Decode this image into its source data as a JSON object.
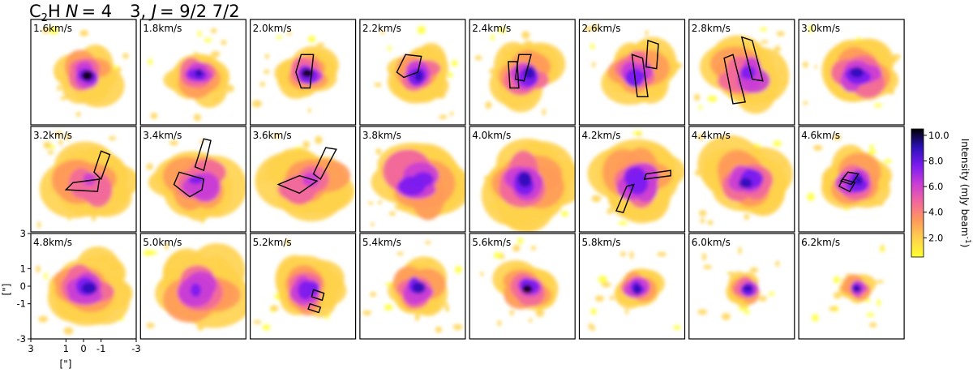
{
  "chart_data": {
    "type": "heatmap",
    "title_parts": {
      "molecule": "C",
      "molecule_sub": "2",
      "molecule_tail": "H",
      "n_label": "N",
      "n_value": "= 4",
      "transition": "3, ",
      "j_label": "J",
      "j_value": "= 9/2   7/2"
    },
    "panels": [
      {
        "label": "1.6km/s",
        "v": 1.6,
        "peak": 10.2,
        "spread": 1.0,
        "regions": []
      },
      {
        "label": "1.8km/s",
        "v": 1.8,
        "peak": 9.5,
        "spread": 1.0,
        "regions": []
      },
      {
        "label": "2.0km/s",
        "v": 2.0,
        "peak": 10.0,
        "spread": 0.9,
        "regions": [
          [
            [
              -0.6,
              1.0
            ],
            [
              0.1,
              1.0
            ],
            [
              0.4,
              0.0
            ],
            [
              0.1,
              -0.9
            ],
            [
              -0.4,
              -0.9
            ]
          ]
        ]
      },
      {
        "label": "2.2km/s",
        "v": 2.2,
        "peak": 9.0,
        "spread": 1.0,
        "regions": [
          [
            [
              -0.5,
              0.9
            ],
            [
              0.4,
              1.0
            ],
            [
              0.9,
              0.0
            ],
            [
              0.5,
              -0.3
            ],
            [
              -0.3,
              0.0
            ]
          ]
        ]
      },
      {
        "label": "2.4km/s",
        "v": 2.4,
        "peak": 8.5,
        "spread": 1.1,
        "regions": [
          [
            [
              -0.5,
              1.0
            ],
            [
              0.2,
              1.0
            ],
            [
              0.4,
              -0.4
            ],
            [
              -0.1,
              -0.5
            ]
          ],
          [
            [
              0.3,
              0.6
            ],
            [
              0.8,
              0.6
            ],
            [
              0.7,
              -0.9
            ],
            [
              0.2,
              -0.9
            ]
          ]
        ]
      },
      {
        "label": "2.6km/s",
        "v": 2.6,
        "peak": 8.0,
        "spread": 1.2,
        "regions": [
          [
            [
              -1.5,
              1.6
            ],
            [
              -0.9,
              1.8
            ],
            [
              -0.8,
              0.3
            ],
            [
              -1.4,
              0.2
            ]
          ],
          [
            [
              -0.6,
              0.8
            ],
            [
              0.0,
              1.0
            ],
            [
              -0.3,
              -1.4
            ],
            [
              -0.9,
              -1.4
            ]
          ]
        ]
      },
      {
        "label": "2.8km/s",
        "v": 2.8,
        "peak": 7.5,
        "spread": 1.3,
        "regions": [
          [
            [
              -0.6,
              1.8
            ],
            [
              0.0,
              2.0
            ],
            [
              -0.6,
              -0.4
            ],
            [
              -1.2,
              -0.5
            ]
          ],
          [
            [
              0.5,
              1.0
            ],
            [
              1.0,
              0.8
            ],
            [
              0.5,
              -1.8
            ],
            [
              -0.2,
              -1.7
            ]
          ]
        ]
      },
      {
        "label": "3.0km/s",
        "v": 3.0,
        "peak": 8.5,
        "spread": 1.4,
        "regions": []
      },
      {
        "label": "3.2km/s",
        "v": 3.2,
        "peak": 6.5,
        "spread": 1.4,
        "regions": [
          [
            [
              -1.5,
              1.4
            ],
            [
              -1.0,
              1.6
            ],
            [
              -0.6,
              0.4
            ],
            [
              -1.0,
              0.0
            ]
          ],
          [
            [
              -0.9,
              0.0
            ],
            [
              0.6,
              -0.2
            ],
            [
              1.0,
              -0.6
            ],
            [
              -0.8,
              -0.7
            ]
          ]
        ]
      },
      {
        "label": "3.4km/s",
        "v": 3.4,
        "peak": 7.0,
        "spread": 1.4,
        "regions": [
          [
            [
              -1.0,
              2.2
            ],
            [
              -0.6,
              2.3
            ],
            [
              -0.1,
              0.7
            ],
            [
              -0.6,
              0.5
            ]
          ],
          [
            [
              -0.6,
              0.0
            ],
            [
              0.8,
              0.4
            ],
            [
              1.1,
              -0.3
            ],
            [
              0.2,
              -1.0
            ],
            [
              -0.5,
              -0.6
            ]
          ]
        ]
      },
      {
        "label": "3.6km/s",
        "v": 3.6,
        "peak": 6.5,
        "spread": 1.5,
        "regions": [
          [
            [
              -1.9,
              1.7
            ],
            [
              -1.3,
              1.8
            ],
            [
              -0.6,
              0.3
            ],
            [
              -1.0,
              0.0
            ]
          ],
          [
            [
              -0.8,
              -0.1
            ],
            [
              0.2,
              0.2
            ],
            [
              1.4,
              -0.3
            ],
            [
              0.2,
              -0.8
            ]
          ]
        ]
      },
      {
        "label": "3.8km/s",
        "v": 3.8,
        "peak": 8.0,
        "spread": 1.6,
        "regions": []
      },
      {
        "label": "4.0km/s",
        "v": 4.0,
        "peak": 8.5,
        "spread": 1.6,
        "regions": []
      },
      {
        "label": "4.2km/s",
        "v": 4.2,
        "peak": 8.0,
        "spread": 1.5,
        "regions": [
          [
            [
              -2.2,
              0.5
            ],
            [
              -0.8,
              0.3
            ],
            [
              -0.7,
              0.0
            ],
            [
              -2.2,
              0.2
            ]
          ],
          [
            [
              -0.1,
              -0.3
            ],
            [
              0.3,
              -0.4
            ],
            [
              0.9,
              -1.8
            ],
            [
              0.5,
              -1.9
            ]
          ]
        ]
      },
      {
        "label": "4.4km/s",
        "v": 4.4,
        "peak": 9.0,
        "spread": 1.4,
        "regions": []
      },
      {
        "label": "4.6km/s",
        "v": 4.6,
        "peak": 8.5,
        "spread": 1.2,
        "regions": [
          [
            [
              -0.4,
              0.3
            ],
            [
              0.2,
              0.4
            ],
            [
              0.6,
              -0.1
            ],
            [
              0.0,
              -0.3
            ]
          ],
          [
            [
              -0.2,
              -0.2
            ],
            [
              0.5,
              0.0
            ],
            [
              0.7,
              -0.4
            ],
            [
              0.1,
              -0.7
            ]
          ]
        ]
      },
      {
        "label": "4.8km/s",
        "v": 4.8,
        "peak": 8.5,
        "spread": 1.4,
        "regions": []
      },
      {
        "label": "5.0km/s",
        "v": 5.0,
        "peak": 7.5,
        "spread": 1.5,
        "regions": []
      },
      {
        "label": "5.2km/s",
        "v": 5.2,
        "peak": 8.0,
        "spread": 1.2,
        "regions": [
          [
            [
              -1.2,
              -0.4
            ],
            [
              -0.6,
              -0.2
            ],
            [
              -0.5,
              -0.6
            ],
            [
              -1.1,
              -0.8
            ]
          ],
          [
            [
              -1.0,
              -1.2
            ],
            [
              -0.4,
              -1.0
            ],
            [
              -0.3,
              -1.3
            ],
            [
              -0.9,
              -1.5
            ]
          ]
        ]
      },
      {
        "label": "5.4km/s",
        "v": 5.4,
        "peak": 8.5,
        "spread": 1.0,
        "regions": []
      },
      {
        "label": "5.6km/s",
        "v": 5.6,
        "peak": 10.0,
        "spread": 0.9,
        "regions": []
      },
      {
        "label": "5.8km/s",
        "v": 5.8,
        "peak": 9.5,
        "spread": 0.7,
        "regions": []
      },
      {
        "label": "6.0km/s",
        "v": 6.0,
        "peak": 9.5,
        "spread": 0.6,
        "regions": []
      },
      {
        "label": "6.2km/s",
        "v": 6.2,
        "peak": 9.0,
        "spread": 0.5,
        "regions": []
      }
    ],
    "x_ticks": [
      "3",
      "1",
      "0",
      "-1",
      "-3"
    ],
    "x_tick_values": [
      3,
      1,
      0,
      -1,
      -3
    ],
    "y_ticks": [
      "3",
      "1",
      "0",
      "-1",
      "-3"
    ],
    "y_tick_values": [
      3,
      1,
      0,
      -1,
      -3
    ],
    "xlabel": "[\"]",
    "ylabel": "[\"]",
    "xlim": [
      3,
      -3
    ],
    "ylim": [
      -3,
      3
    ],
    "colorbar": {
      "label": "Intensity (mJy beam",
      "label_sup": "-1",
      "label_close": ")",
      "ticks": [
        "2.0",
        "4.0",
        "6.0",
        "8.0",
        "10.0"
      ],
      "tick_values": [
        2,
        4,
        6,
        8,
        10
      ],
      "range": [
        0.5,
        10.5
      ],
      "colormap": [
        "#ffff30",
        "#ffd24d",
        "#ff9a5a",
        "#f2689b",
        "#c93dd6",
        "#7b1cf0",
        "#2c10b8",
        "#000000"
      ]
    },
    "grid": false,
    "layout_rows": 3,
    "layout_cols": 8
  }
}
